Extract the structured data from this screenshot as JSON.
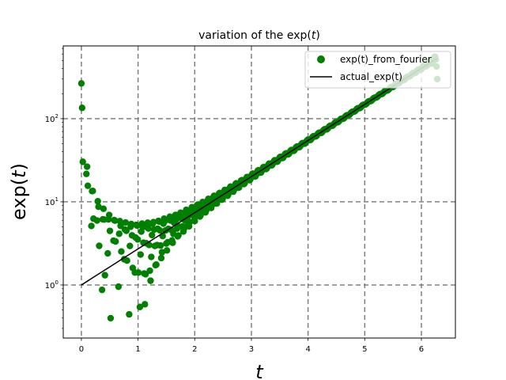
{
  "chart_data": {
    "type": "scatter",
    "title": "variation of the exp(t)",
    "title_parts": {
      "prefix": "variation of the exp(",
      "var": "t",
      "suffix": ")"
    },
    "xlabel": "t",
    "ylabel": "exp(t)",
    "ylabel_parts": {
      "prefix": "exp(",
      "var": "t",
      "suffix": ")"
    },
    "xlim": [
      -0.32,
      6.6
    ],
    "ylim": [
      0.23,
      750
    ],
    "yscale": "log",
    "x_ticks": [
      0,
      1,
      2,
      3,
      4,
      5,
      6
    ],
    "x_tick_labels": [
      "0",
      "1",
      "2",
      "3",
      "4",
      "5",
      "6"
    ],
    "y_ticks": [
      1,
      10,
      100
    ],
    "y_tick_labels": [
      {
        "base": "10",
        "exp": "0"
      },
      {
        "base": "10",
        "exp": "1"
      },
      {
        "base": "10",
        "exp": "2"
      }
    ],
    "grid": true,
    "grid_style": "dashed",
    "legend_position": "top-right",
    "series": [
      {
        "name": "exp(t)_from_fourier",
        "kind": "scatter",
        "color": "#008000",
        "fourier_points": 64
      },
      {
        "name": "actual_exp(t)",
        "kind": "line",
        "color": "#000000",
        "x_range": [
          0,
          6.28
        ]
      }
    ]
  }
}
